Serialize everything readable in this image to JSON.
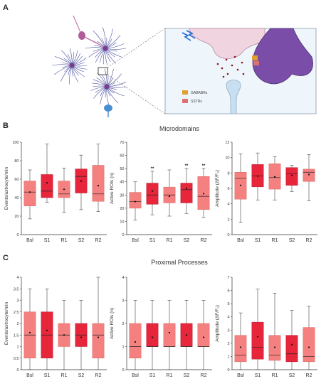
{
  "panel_labels": {
    "a": "A",
    "b": "B",
    "c": "C"
  },
  "section_titles": {
    "microdomains": "Microdomains",
    "proximal": "Proximal Processes"
  },
  "legend": {
    "gabab": "GABABRs",
    "sstr": "SSTRs"
  },
  "colors": {
    "light": "#f4807f",
    "dark": "#e7263c",
    "dark_edge": "#b3182d",
    "purple": "#7a4ea8",
    "dendrite": "#5b3a9e",
    "vessel": "#c7dff0",
    "box_bg": "#eef5fb",
    "red_dot": "#8b1420"
  },
  "chart_data": [
    {
      "type": "box",
      "section": "Microdomains",
      "ylabel": "Events/astrocyte/min",
      "categories": [
        "Bsl",
        "S1",
        "R1",
        "S2",
        "R2"
      ],
      "ylim": [
        0,
        100
      ],
      "yticks": [
        0,
        20,
        40,
        60,
        80,
        100
      ],
      "styles": [
        "light",
        "dark",
        "light",
        "dark",
        "light"
      ],
      "boxes": [
        {
          "min": 17,
          "q1": 31,
          "median": 46,
          "q3": 58,
          "max": 70,
          "mean": 46,
          "sig": ""
        },
        {
          "min": 35,
          "q1": 40,
          "median": 47,
          "q3": 65,
          "max": 98,
          "mean": 56,
          "sig": ""
        },
        {
          "min": 24,
          "q1": 40,
          "median": 44,
          "q3": 58,
          "max": 72,
          "mean": 49,
          "sig": ""
        },
        {
          "min": 27,
          "q1": 45,
          "median": 63,
          "q3": 71,
          "max": 86,
          "mean": 58,
          "sig": ""
        },
        {
          "min": 25,
          "q1": 36,
          "median": 44,
          "q3": 75,
          "max": 98,
          "mean": 53,
          "sig": ""
        }
      ]
    },
    {
      "type": "box",
      "section": "Microdomains",
      "ylabel": "Active ROIs (n)",
      "categories": [
        "Bsl",
        "S1",
        "R1",
        "S2",
        "R2"
      ],
      "ylim": [
        0,
        70
      ],
      "yticks": [
        0,
        10,
        20,
        30,
        40,
        50,
        60,
        70
      ],
      "styles": [
        "light",
        "dark",
        "light",
        "dark",
        "light"
      ],
      "boxes": [
        {
          "min": 11,
          "q1": 20,
          "median": 25,
          "q3": 32,
          "max": 40,
          "mean": 25,
          "sig": ""
        },
        {
          "min": 15,
          "q1": 23,
          "median": 30,
          "q3": 39,
          "max": 48,
          "mean": 33,
          "sig": "**"
        },
        {
          "min": 14,
          "q1": 24,
          "median": 30,
          "q3": 36,
          "max": 49,
          "mean": 29,
          "sig": ""
        },
        {
          "min": 16,
          "q1": 24,
          "median": 34,
          "q3": 39,
          "max": 50,
          "mean": 35,
          "sig": "**"
        },
        {
          "min": 13,
          "q1": 19,
          "median": 29,
          "q3": 44,
          "max": 50,
          "mean": 31,
          "sig": "**"
        }
      ]
    },
    {
      "type": "box",
      "section": "Microdomains",
      "ylabel": "Amplitude (ΔF/F₀)",
      "categories": [
        "Bsl",
        "S1",
        "R1",
        "S2",
        "R2"
      ],
      "ylim": [
        0,
        12
      ],
      "yticks": [
        0,
        2,
        4,
        6,
        8,
        10,
        12
      ],
      "styles": [
        "light",
        "dark",
        "light",
        "dark",
        "light"
      ],
      "boxes": [
        {
          "min": 1.6,
          "q1": 4.6,
          "median": 7.3,
          "q3": 8.1,
          "max": 10.5,
          "mean": 6.4,
          "sig": ""
        },
        {
          "min": 4.5,
          "q1": 6.2,
          "median": 7.6,
          "q3": 9.1,
          "max": 10.6,
          "mean": 7.6,
          "sig": ""
        },
        {
          "min": 4.5,
          "q1": 5.9,
          "median": 7.4,
          "q3": 9.2,
          "max": 10.1,
          "mean": 7.5,
          "sig": ""
        },
        {
          "min": 5.6,
          "q1": 6.4,
          "median": 7.9,
          "q3": 8.7,
          "max": 9.0,
          "mean": 7.7,
          "sig": ""
        },
        {
          "min": 4.4,
          "q1": 6.9,
          "median": 8.1,
          "q3": 8.5,
          "max": 10.4,
          "mean": 7.8,
          "sig": ""
        }
      ]
    },
    {
      "type": "box",
      "section": "Proximal Processes",
      "ylabel": "Events/astrocyte/min",
      "categories": [
        "Bsl",
        "S1",
        "R1",
        "S2",
        "R2"
      ],
      "ylim": [
        0,
        4
      ],
      "yticks": [
        0,
        0.5,
        1,
        1.5,
        2,
        2.5,
        3,
        3.5,
        4
      ],
      "styles": [
        "light",
        "dark",
        "light",
        "dark",
        "light"
      ],
      "boxes": [
        {
          "min": 0,
          "q1": 0.5,
          "median": 1.5,
          "q3": 2.5,
          "max": 3.5,
          "mean": 1.6,
          "sig": ""
        },
        {
          "min": 0,
          "q1": 0.5,
          "median": 1.5,
          "q3": 2.5,
          "max": 3.5,
          "mean": 1.7,
          "sig": ""
        },
        {
          "min": 0,
          "q1": 1.0,
          "median": 1.5,
          "q3": 2.0,
          "max": 3.0,
          "mean": 1.5,
          "sig": ""
        },
        {
          "min": 0,
          "q1": 1.0,
          "median": 1.5,
          "q3": 2.0,
          "max": 3.0,
          "mean": 1.4,
          "sig": ""
        },
        {
          "min": 0,
          "q1": 0.5,
          "median": 1.5,
          "q3": 2.0,
          "max": 4.0,
          "mean": 1.4,
          "sig": ""
        }
      ]
    },
    {
      "type": "box",
      "section": "Proximal Processes",
      "ylabel": "Active ROIs (n)",
      "categories": [
        "Bsl",
        "S1",
        "R1",
        "S2",
        "R2"
      ],
      "ylim": [
        0,
        4
      ],
      "yticks": [
        0,
        1,
        2,
        3,
        4
      ],
      "styles": [
        "light",
        "dark",
        "light",
        "dark",
        "light"
      ],
      "boxes": [
        {
          "min": 0,
          "q1": 0.5,
          "median": 1.0,
          "q3": 2.0,
          "max": 3.0,
          "mean": 1.2,
          "sig": ""
        },
        {
          "min": 0,
          "q1": 1.0,
          "median": 1.0,
          "q3": 2.0,
          "max": 3.0,
          "mean": 1.4,
          "sig": ""
        },
        {
          "min": 0,
          "q1": 1.0,
          "median": 1.0,
          "q3": 2.0,
          "max": 3.0,
          "mean": 1.6,
          "sig": ""
        },
        {
          "min": 0,
          "q1": 1.0,
          "median": 1.0,
          "q3": 2.0,
          "max": 3.0,
          "mean": 1.5,
          "sig": ""
        },
        {
          "min": 0,
          "q1": 1.0,
          "median": 1.0,
          "q3": 2.0,
          "max": 3.0,
          "mean": 1.4,
          "sig": ""
        }
      ]
    },
    {
      "type": "box",
      "section": "Proximal Processes",
      "ylabel": "Amplitude (ΔF/F₀)",
      "categories": [
        "Bsl",
        "S1",
        "R1",
        "S2",
        "R2"
      ],
      "ylim": [
        0,
        7
      ],
      "yticks": [
        0,
        1,
        2,
        3,
        4,
        5,
        6,
        7
      ],
      "styles": [
        "light",
        "dark",
        "light",
        "dark",
        "light"
      ],
      "boxes": [
        {
          "min": 0,
          "q1": 0.6,
          "median": 1.1,
          "q3": 2.6,
          "max": 4.3,
          "mean": 1.7,
          "sig": ""
        },
        {
          "min": 0,
          "q1": 0.8,
          "median": 1.7,
          "q3": 3.6,
          "max": 6.1,
          "mean": 2.5,
          "sig": ""
        },
        {
          "min": 0,
          "q1": 0.7,
          "median": 1.1,
          "q3": 2.6,
          "max": 5.8,
          "mean": 1.7,
          "sig": ""
        },
        {
          "min": 0,
          "q1": 0.6,
          "median": 1.2,
          "q3": 2.6,
          "max": 4.5,
          "mean": 1.9,
          "sig": ""
        },
        {
          "min": 0,
          "q1": 0.6,
          "median": 1.0,
          "q3": 3.2,
          "max": 4.8,
          "mean": 1.7,
          "sig": ""
        }
      ]
    }
  ]
}
